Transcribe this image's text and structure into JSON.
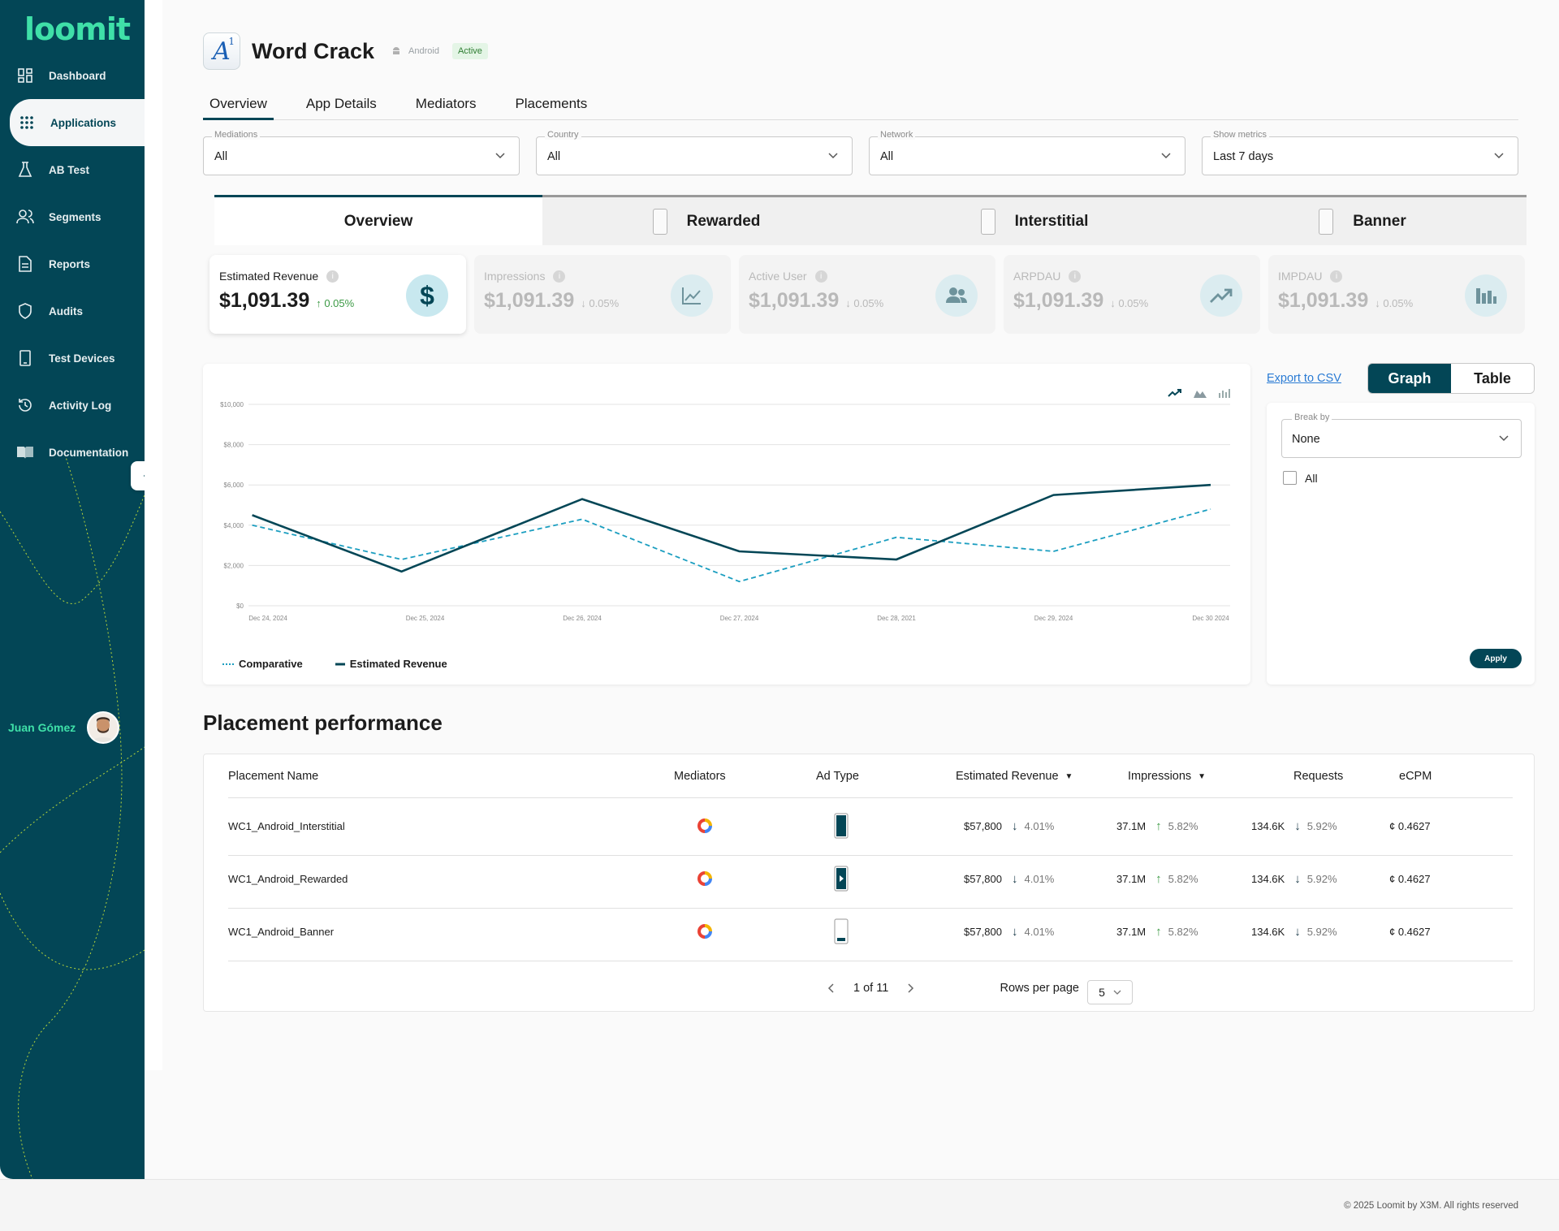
{
  "brand": {
    "logo": "loomit",
    "accent": "#3fe0a8",
    "primary": "#034656"
  },
  "sidebar": {
    "items": [
      {
        "label": "Dashboard",
        "icon": "dashboard-icon"
      },
      {
        "label": "Applications",
        "icon": "apps-grid-icon"
      },
      {
        "label": "AB Test",
        "icon": "flask-icon"
      },
      {
        "label": "Segments",
        "icon": "users-icon"
      },
      {
        "label": "Reports",
        "icon": "document-icon"
      },
      {
        "label": "Audits",
        "icon": "shield-icon"
      },
      {
        "label": "Test Devices",
        "icon": "phone-icon"
      },
      {
        "label": "Activity Log",
        "icon": "history-icon"
      },
      {
        "label": "Documentation",
        "icon": "book-icon"
      }
    ],
    "active": "Applications"
  },
  "user": {
    "name": "Juan Gómez"
  },
  "app": {
    "title": "Word Crack",
    "platform": "Android",
    "status": "Active"
  },
  "tabs": [
    {
      "label": "Overview"
    },
    {
      "label": "App Details"
    },
    {
      "label": "Mediators"
    },
    {
      "label": "Placements"
    }
  ],
  "filters": [
    {
      "label": "Mediations",
      "value": "All"
    },
    {
      "label": "Country",
      "value": "All"
    },
    {
      "label": "Network",
      "value": "All"
    },
    {
      "label": "Show metrics",
      "value": "Last 7 days"
    }
  ],
  "segments": [
    {
      "label": "Overview"
    },
    {
      "label": "Rewarded"
    },
    {
      "label": "Interstitial"
    },
    {
      "label": "Banner"
    }
  ],
  "metrics": [
    {
      "title": "Estimated Revenue",
      "value": "$1,091.39",
      "delta": "0.05%",
      "dir": "up",
      "icon": "dollar-icon"
    },
    {
      "title": "Impressions",
      "value": "$1,091.39",
      "delta": "0.05%",
      "dir": "down",
      "icon": "line-chart-icon"
    },
    {
      "title": "Active User",
      "value": "$1,091.39",
      "delta": "0.05%",
      "dir": "down",
      "icon": "people-icon"
    },
    {
      "title": "ARPDAU",
      "value": "$1,091.39",
      "delta": "0.05%",
      "dir": "down",
      "icon": "trending-up-icon"
    },
    {
      "title": "IMPDAU",
      "value": "$1,091.39",
      "delta": "0.05%",
      "dir": "down",
      "icon": "bar-chart-icon"
    }
  ],
  "chart_data": {
    "type": "line",
    "x": [
      "Dec 24, 2024",
      "Dec 25, 2024",
      "Dec 26, 2024",
      "Dec 27, 2024",
      "Dec 28, 2021",
      "Dec 29, 2024",
      "Dec 30 2024"
    ],
    "yticks": [
      "$10,000",
      "$8,000",
      "$6,000",
      "$4,000",
      "$2,000",
      "$0"
    ],
    "ylim": [
      0,
      10000
    ],
    "series": [
      {
        "name": "Estimated Revenue",
        "style": "solid",
        "color": "#034656",
        "points": [
          [
            -0.1,
            4500
          ],
          [
            0.85,
            1700
          ],
          [
            2,
            5300
          ],
          [
            3,
            2700
          ],
          [
            4,
            2300
          ],
          [
            5,
            5500
          ],
          [
            6,
            6000
          ]
        ]
      },
      {
        "name": "Comparative",
        "style": "dashed",
        "color": "#1b9ec0",
        "points": [
          [
            -0.1,
            4000
          ],
          [
            0.85,
            2300
          ],
          [
            2,
            4300
          ],
          [
            3,
            1200
          ],
          [
            4,
            3400
          ],
          [
            5,
            2700
          ],
          [
            6,
            4800
          ]
        ]
      }
    ],
    "legend": "bottom-left",
    "grid": true
  },
  "chart_side": {
    "export": "Export to CSV",
    "graph": "Graph",
    "table": "Table",
    "breakby_label": "Break by",
    "breakby_value": "None",
    "all": "All",
    "apply": "Apply"
  },
  "placement": {
    "title": "Placement performance",
    "headers": [
      "Placement Name",
      "Mediators",
      "Ad Type",
      "Estimated Revenue",
      "Impressions",
      "Requests",
      "eCPM"
    ],
    "rows": [
      {
        "name": "WC1_Android_Interstitial",
        "adtype": "interstitial",
        "rev": "$57,800",
        "rev_d": "4.01%",
        "imp": "37.1M",
        "imp_d": "5.82%",
        "req": "134.6K",
        "req_d": "5.92%",
        "ecpm": "¢ 0.4627"
      },
      {
        "name": "WC1_Android_Rewarded",
        "adtype": "rewarded",
        "rev": "$57,800",
        "rev_d": "4.01%",
        "imp": "37.1M",
        "imp_d": "5.82%",
        "req": "134.6K",
        "req_d": "5.92%",
        "ecpm": "¢ 0.4627"
      },
      {
        "name": "WC1_Android_Banner",
        "adtype": "banner",
        "rev": "$57,800",
        "rev_d": "4.01%",
        "imp": "37.1M",
        "imp_d": "5.82%",
        "req": "134.6K",
        "req_d": "5.92%",
        "ecpm": "¢ 0.4627"
      }
    ],
    "pager": "1 of 11",
    "rows_per_page_label": "Rows per page",
    "rows_per_page": "5"
  },
  "footer": "© 2025 Loomit by X3M. All rights reserved"
}
